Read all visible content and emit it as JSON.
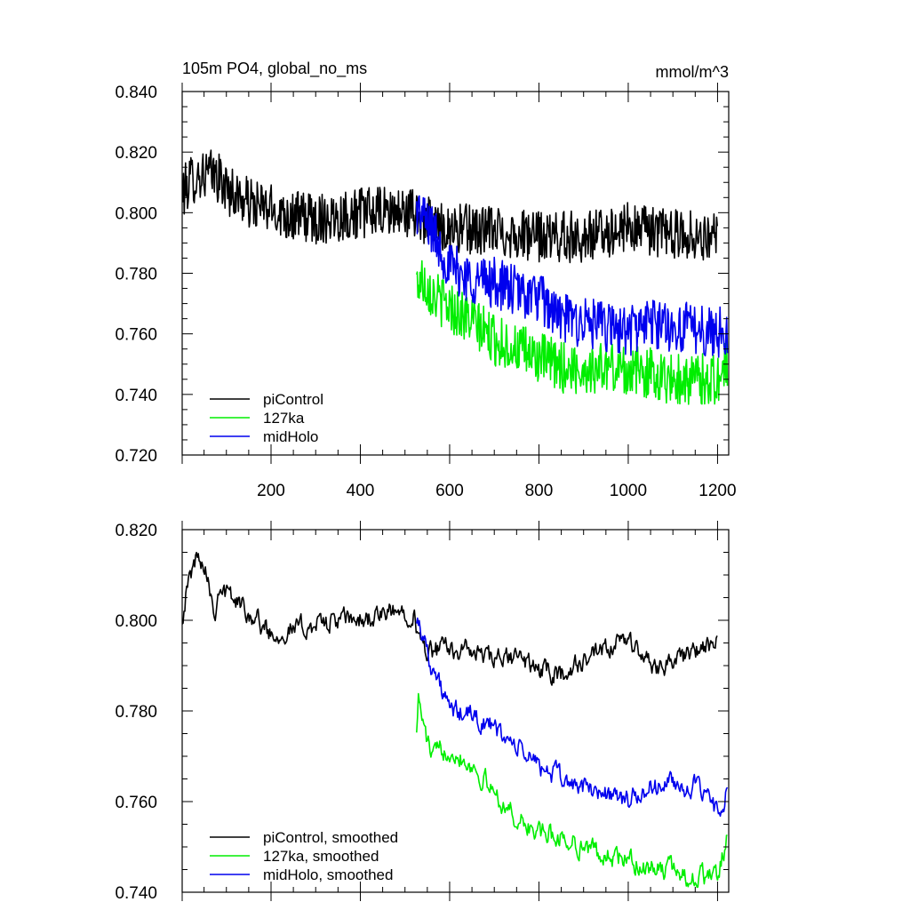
{
  "chart_data": [
    {
      "type": "line",
      "panel": "top",
      "title": "105m PO4, global_no_ms",
      "units": "mmol/m^3",
      "xlabel": "",
      "ylabel": "",
      "xlim": [
        1,
        1225
      ],
      "ylim": [
        0.72,
        0.84
      ],
      "x_ticks": [
        200,
        400,
        600,
        800,
        1000,
        1200
      ],
      "x_tick_labels": [
        "200",
        "400",
        "600",
        "800",
        "1000",
        "1200"
      ],
      "y_ticks": [
        0.72,
        0.74,
        0.76,
        0.78,
        0.8,
        0.82,
        0.84
      ],
      "y_tick_labels": [
        "0.720",
        "0.740",
        "0.760",
        "0.780",
        "0.800",
        "0.820",
        "0.840"
      ],
      "legend_position": "bottom-left",
      "noise": 0.0085,
      "series": [
        {
          "name": "piControl",
          "color": "#000000",
          "x_start": 1,
          "x_end": 1200,
          "knots": [
            [
              1,
              0.806
            ],
            [
              20,
              0.811
            ],
            [
              50,
              0.813
            ],
            [
              80,
              0.812
            ],
            [
              100,
              0.808
            ],
            [
              150,
              0.803
            ],
            [
              200,
              0.801
            ],
            [
              250,
              0.799
            ],
            [
              300,
              0.798
            ],
            [
              350,
              0.799
            ],
            [
              400,
              0.8
            ],
            [
              450,
              0.8
            ],
            [
              500,
              0.8
            ],
            [
              520,
              0.8
            ],
            [
              530,
              0.799
            ],
            [
              560,
              0.796
            ],
            [
              600,
              0.795
            ],
            [
              700,
              0.794
            ],
            [
              800,
              0.792
            ],
            [
              900,
              0.792
            ],
            [
              1000,
              0.795
            ],
            [
              1100,
              0.793
            ],
            [
              1200,
              0.792
            ]
          ]
        },
        {
          "name": "127ka",
          "color": "#00ee00",
          "x_start": 526,
          "x_end": 1222,
          "knots": [
            [
              526,
              0.777
            ],
            [
              540,
              0.778
            ],
            [
              570,
              0.772
            ],
            [
              600,
              0.769
            ],
            [
              650,
              0.764
            ],
            [
              700,
              0.758
            ],
            [
              750,
              0.755
            ],
            [
              800,
              0.752
            ],
            [
              850,
              0.749
            ],
            [
              900,
              0.748
            ],
            [
              950,
              0.749
            ],
            [
              1000,
              0.748
            ],
            [
              1050,
              0.747
            ],
            [
              1100,
              0.745
            ],
            [
              1150,
              0.745
            ],
            [
              1200,
              0.745
            ],
            [
              1222,
              0.75
            ]
          ]
        },
        {
          "name": "midHolo",
          "color": "#0000ee",
          "x_start": 526,
          "x_end": 1222,
          "knots": [
            [
              526,
              0.801
            ],
            [
              560,
              0.795
            ],
            [
              580,
              0.788
            ],
            [
              600,
              0.782
            ],
            [
              650,
              0.778
            ],
            [
              700,
              0.777
            ],
            [
              750,
              0.774
            ],
            [
              800,
              0.772
            ],
            [
              850,
              0.765
            ],
            [
              900,
              0.764
            ],
            [
              950,
              0.762
            ],
            [
              1000,
              0.761
            ],
            [
              1050,
              0.764
            ],
            [
              1100,
              0.762
            ],
            [
              1150,
              0.762
            ],
            [
              1200,
              0.76
            ],
            [
              1222,
              0.762
            ]
          ]
        }
      ]
    },
    {
      "type": "line",
      "panel": "bottom",
      "title": "",
      "xlabel": "",
      "ylabel": "",
      "xlim": [
        1,
        1225
      ],
      "ylim": [
        0.74,
        0.82
      ],
      "x_ticks": [
        200,
        400,
        600,
        800,
        1000,
        1200
      ],
      "x_tick_labels": [],
      "y_ticks": [
        0.74,
        0.76,
        0.78,
        0.8,
        0.82
      ],
      "y_tick_labels": [
        "0.740",
        "0.760",
        "0.780",
        "0.800",
        "0.820"
      ],
      "legend_position": "bottom-left",
      "noise": 0.0032,
      "series": [
        {
          "name": "piControl, smoothed",
          "color": "#000000",
          "x_start": 1,
          "x_end": 1200,
          "knots": [
            [
              1,
              0.801
            ],
            [
              10,
              0.806
            ],
            [
              25,
              0.812
            ],
            [
              40,
              0.815
            ],
            [
              60,
              0.81
            ],
            [
              75,
              0.8
            ],
            [
              80,
              0.808
            ],
            [
              100,
              0.806
            ],
            [
              150,
              0.802
            ],
            [
              200,
              0.797
            ],
            [
              250,
              0.798
            ],
            [
              300,
              0.799
            ],
            [
              350,
              0.8
            ],
            [
              400,
              0.8
            ],
            [
              450,
              0.801
            ],
            [
              500,
              0.802
            ],
            [
              520,
              0.802
            ],
            [
              530,
              0.795
            ],
            [
              560,
              0.793
            ],
            [
              600,
              0.794
            ],
            [
              650,
              0.793
            ],
            [
              700,
              0.791
            ],
            [
              750,
              0.792
            ],
            [
              800,
              0.789
            ],
            [
              850,
              0.788
            ],
            [
              900,
              0.791
            ],
            [
              950,
              0.793
            ],
            [
              1000,
              0.796
            ],
            [
              1050,
              0.79
            ],
            [
              1100,
              0.791
            ],
            [
              1150,
              0.793
            ],
            [
              1180,
              0.794
            ],
            [
              1200,
              0.795
            ]
          ]
        },
        {
          "name": "127ka, smoothed",
          "color": "#00ee00",
          "x_start": 526,
          "x_end": 1222,
          "knots": [
            [
              526,
              0.777
            ],
            [
              530,
              0.783
            ],
            [
              545,
              0.775
            ],
            [
              560,
              0.77
            ],
            [
              600,
              0.772
            ],
            [
              650,
              0.768
            ],
            [
              700,
              0.762
            ],
            [
              750,
              0.756
            ],
            [
              800,
              0.753
            ],
            [
              850,
              0.752
            ],
            [
              900,
              0.75
            ],
            [
              950,
              0.748
            ],
            [
              1000,
              0.747
            ],
            [
              1050,
              0.745
            ],
            [
              1100,
              0.745
            ],
            [
              1150,
              0.743
            ],
            [
              1200,
              0.744
            ],
            [
              1222,
              0.752
            ]
          ]
        },
        {
          "name": "midHolo, smoothed",
          "color": "#0000ee",
          "x_start": 526,
          "x_end": 1222,
          "knots": [
            [
              526,
              0.801
            ],
            [
              540,
              0.797
            ],
            [
              560,
              0.79
            ],
            [
              580,
              0.785
            ],
            [
              600,
              0.78
            ],
            [
              650,
              0.779
            ],
            [
              700,
              0.776
            ],
            [
              750,
              0.772
            ],
            [
              800,
              0.768
            ],
            [
              850,
              0.765
            ],
            [
              900,
              0.763
            ],
            [
              950,
              0.762
            ],
            [
              1000,
              0.76
            ],
            [
              1050,
              0.763
            ],
            [
              1100,
              0.764
            ],
            [
              1150,
              0.763
            ],
            [
              1200,
              0.758
            ],
            [
              1222,
              0.762
            ]
          ]
        }
      ]
    }
  ]
}
